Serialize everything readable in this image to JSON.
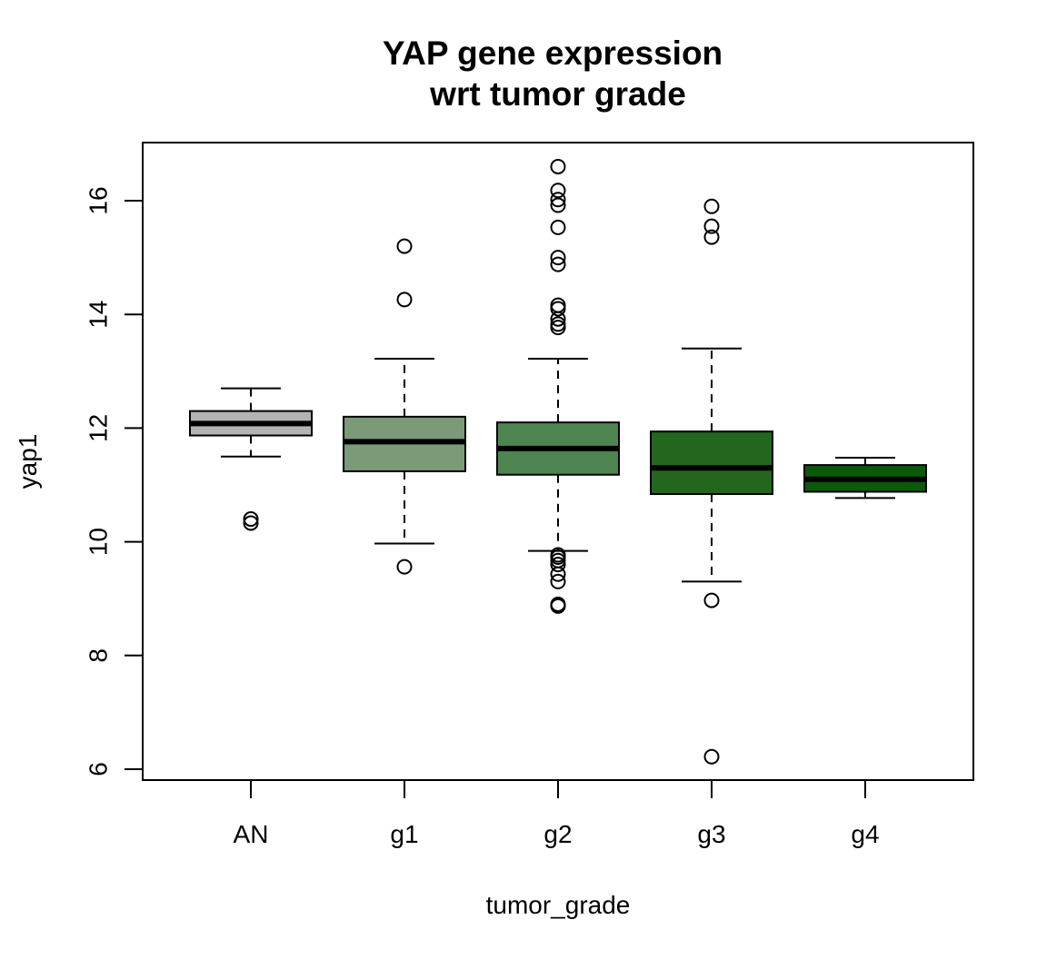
{
  "chart_data": {
    "type": "boxplot",
    "title": [
      "YAP gene expression",
      "wrt tumor grade"
    ],
    "xlabel": "tumor_grade",
    "ylabel": "yap1",
    "ylim": [
      5.8,
      17.0
    ],
    "yticks": [
      6,
      8,
      10,
      12,
      14,
      16
    ],
    "yticks_labels": [
      "6",
      "8",
      "10",
      "12",
      "14",
      "16"
    ],
    "grid": false,
    "legend": "none",
    "categories": [
      "AN",
      "g1",
      "g2",
      "g3",
      "g4"
    ],
    "boxes": [
      {
        "name": "AN",
        "color": "#b3b3b3",
        "whisker_low": 11.5,
        "q1": 11.87,
        "median": 12.08,
        "q3": 12.3,
        "whisker_high": 12.7,
        "outliers": [
          10.33,
          10.4
        ]
      },
      {
        "name": "g1",
        "color": "#7a9a78",
        "whisker_low": 9.97,
        "q1": 11.24,
        "median": 11.76,
        "q3": 12.2,
        "whisker_high": 13.22,
        "outliers": [
          9.56,
          14.26,
          15.2
        ]
      },
      {
        "name": "g2",
        "color": "#4e8450",
        "whisker_low": 9.84,
        "q1": 11.18,
        "median": 11.64,
        "q3": 12.1,
        "whisker_high": 13.22,
        "outliers": [
          8.87,
          8.9,
          9.3,
          9.43,
          9.6,
          9.67,
          9.73,
          9.77,
          13.77,
          13.83,
          13.92,
          14.1,
          14.16,
          14.88,
          15.0,
          15.53,
          15.92,
          16.02,
          16.18,
          16.6
        ]
      },
      {
        "name": "g3",
        "color": "#23671f",
        "whisker_low": 9.3,
        "q1": 10.84,
        "median": 11.3,
        "q3": 11.94,
        "whisker_high": 13.4,
        "outliers": [
          6.22,
          8.97,
          15.36,
          15.55,
          15.9
        ]
      },
      {
        "name": "g4",
        "color": "#0b5a09",
        "whisker_low": 10.77,
        "q1": 10.88,
        "median": 11.1,
        "q3": 11.35,
        "whisker_high": 11.48,
        "outliers": []
      }
    ]
  }
}
